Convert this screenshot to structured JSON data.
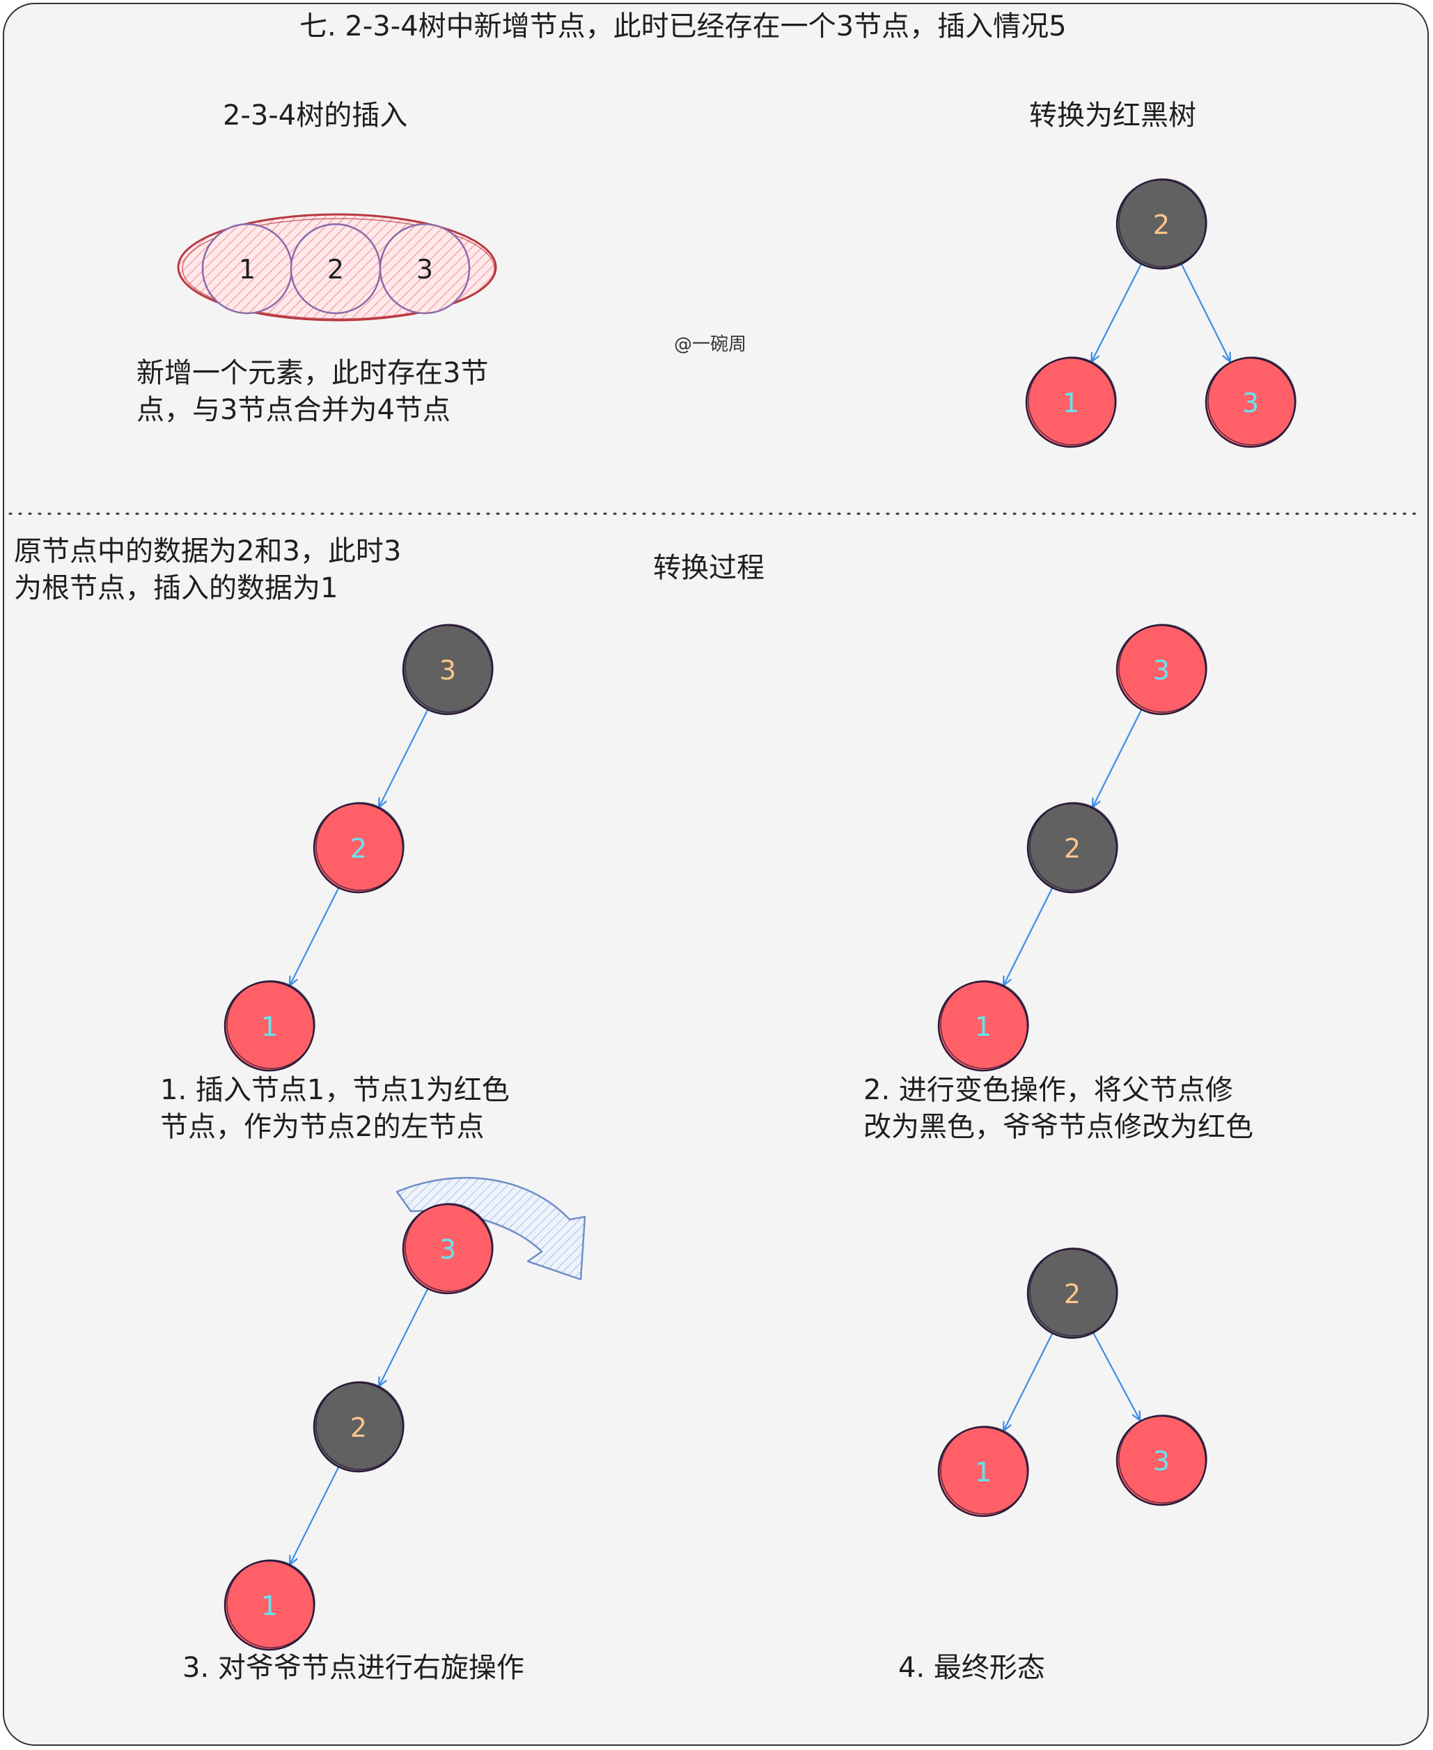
{
  "title": "七. 2-3-4树中新增节点，此时已经存在一个3节点，插入情况5",
  "top_left": {
    "heading": "2-3-4树的插入",
    "node_values": [
      "1",
      "2",
      "3"
    ],
    "caption": "新增一个元素，此时存在3节\n点，与3节点合并为4节点"
  },
  "watermark": "@一碗周",
  "top_right": {
    "heading": "转换为红黑树",
    "nodes": [
      {
        "value": "2",
        "color": "black"
      },
      {
        "value": "1",
        "color": "red"
      },
      {
        "value": "3",
        "color": "red"
      }
    ]
  },
  "bottom": {
    "note": "原节点中的数据为2和3，此时3\n为根节点，插入的数据为1",
    "heading": "转换过程",
    "steps": [
      {
        "caption": "1. 插入节点1，节点1为红色\n节点，作为节点2的左节点",
        "nodes": [
          {
            "value": "3",
            "color": "black"
          },
          {
            "value": "2",
            "color": "red"
          },
          {
            "value": "1",
            "color": "red"
          }
        ]
      },
      {
        "caption": "2. 进行变色操作，将父节点修\n改为黑色，爷爷节点修改为红色",
        "nodes": [
          {
            "value": "3",
            "color": "red"
          },
          {
            "value": "2",
            "color": "black"
          },
          {
            "value": "1",
            "color": "red"
          }
        ]
      },
      {
        "caption": "3. 对爷爷节点进行右旋操作",
        "nodes": [
          {
            "value": "3",
            "color": "red"
          },
          {
            "value": "2",
            "color": "black"
          },
          {
            "value": "1",
            "color": "red"
          }
        ]
      },
      {
        "caption": "4. 最终形态",
        "nodes": [
          {
            "value": "2",
            "color": "black"
          },
          {
            "value": "1",
            "color": "red"
          },
          {
            "value": "3",
            "color": "red"
          }
        ]
      }
    ]
  },
  "colors": {
    "red_node": "#ff6068",
    "black_node": "#616161",
    "red_label": "#64e5f0",
    "black_label": "#ffc68a",
    "edge": "#3a8ee6",
    "outline": "#2a1a3a"
  }
}
